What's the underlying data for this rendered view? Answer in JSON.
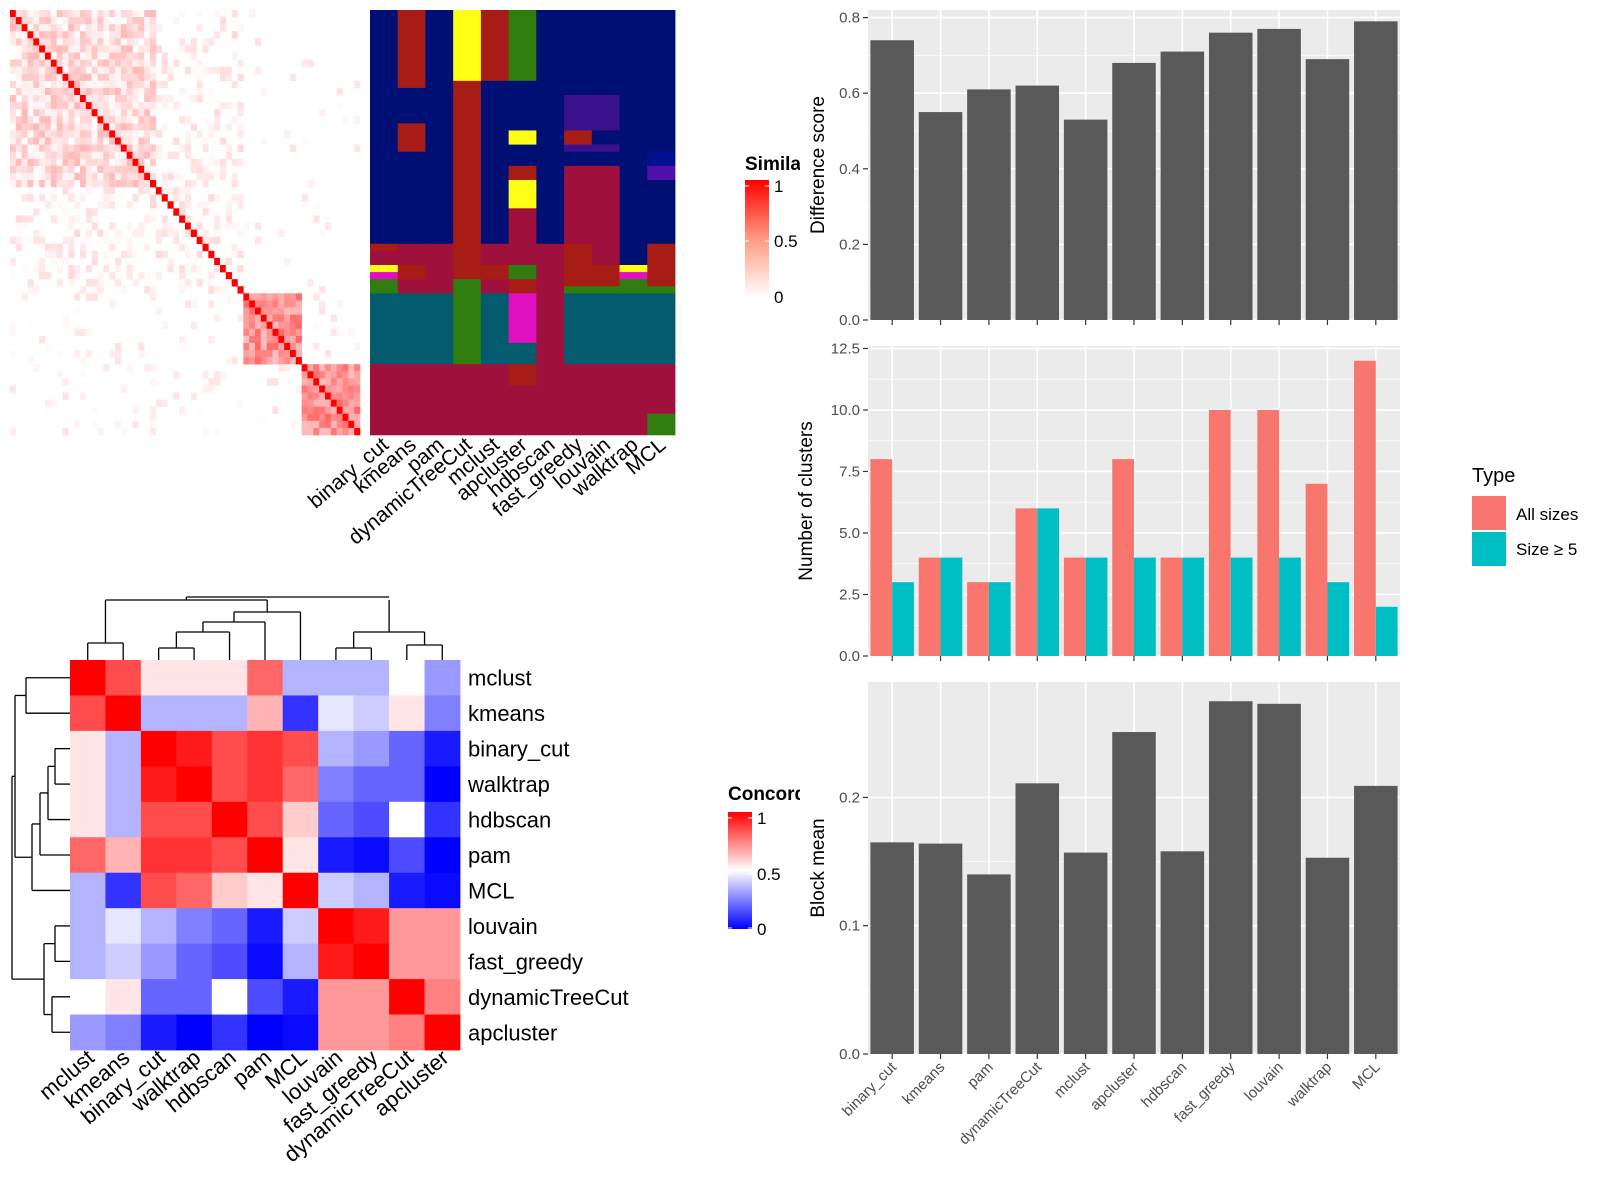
{
  "colors": {
    "panel_bg": "#ebebeb",
    "grid": "#ffffff",
    "bar_dark": "#595959",
    "all_sizes": "#f8766d",
    "size_ge5": "#00bfc4",
    "sim_high": "#ff0000",
    "conc_low": "#0000ff",
    "clusters": {
      "navy": "#000f73",
      "darkred": "#a81c16",
      "yellow": "#ffff16",
      "green": "#2e7d0e",
      "purple": "#3a118c",
      "crimson": "#a0103c",
      "teal": "#055b6e",
      "magenta": "#e010c0",
      "indigo": "#5010a8",
      "blue": "#001090"
    }
  },
  "cell_similarity": {
    "legend_title": "Simila",
    "legend_ticks": [
      "1",
      "0.5",
      "0"
    ],
    "n_cells": 60,
    "block_starts": [
      0,
      40,
      50
    ],
    "block_ends": [
      40,
      50,
      60
    ]
  },
  "cluster_assignment": {
    "methods": [
      "binary_cut",
      "kmeans",
      "pam",
      "dynamicTreeCut",
      "mclust",
      "apcluster",
      "hdbscan",
      "fast_greedy",
      "louvain",
      "walktrap",
      "MCL"
    ],
    "label_texts": [
      "binary_cut",
      "kmeans",
      "pam",
      "dynamicTreeCut",
      "mclust",
      "apcluster",
      "hdbscan",
      "fast_greedy",
      "louvain",
      "walktrap",
      "MCL"
    ]
  },
  "concordance": {
    "legend_title": "Concord",
    "legend_ticks": [
      "1",
      "0.5",
      "0"
    ],
    "row_order": [
      "mclust",
      "kmeans",
      "binary_cut",
      "walktrap",
      "hdbscan",
      "pam",
      "MCL",
      "louvain",
      "fast_greedy",
      "dynamicTreeCut",
      "apcluster"
    ],
    "row_labels": [
      "mclust",
      "kmeans",
      "binary_cut",
      "walktrap",
      "hdbscan",
      "pam",
      "MCL",
      "louvain",
      "fast_greedy",
      "dynamicTreeCut",
      "apcluster"
    ],
    "col_labels": [
      "mclust",
      "kmeans",
      "binary_cut",
      "walktrap",
      "hdbscan",
      "pam",
      "MCL",
      "louvain",
      "fast_greedy",
      "dynamicTreeCut",
      "apcluster"
    ],
    "matrix": [
      [
        1.0,
        0.85,
        0.55,
        0.55,
        0.55,
        0.8,
        0.35,
        0.35,
        0.35,
        0.5,
        0.3
      ],
      [
        0.85,
        1.0,
        0.35,
        0.35,
        0.35,
        0.65,
        0.1,
        0.45,
        0.4,
        0.55,
        0.25
      ],
      [
        0.55,
        0.35,
        1.0,
        0.95,
        0.85,
        0.9,
        0.85,
        0.35,
        0.3,
        0.2,
        0.05
      ],
      [
        0.55,
        0.35,
        0.95,
        1.0,
        0.85,
        0.9,
        0.8,
        0.25,
        0.2,
        0.2,
        -0.1
      ],
      [
        0.55,
        0.35,
        0.85,
        0.85,
        1.0,
        0.85,
        0.6,
        0.2,
        0.15,
        0.5,
        0.1
      ],
      [
        0.8,
        0.65,
        0.9,
        0.9,
        0.85,
        1.0,
        0.55,
        0.05,
        0.02,
        0.15,
        -0.2
      ],
      [
        0.35,
        0.1,
        0.85,
        0.8,
        0.6,
        0.55,
        1.0,
        0.4,
        0.35,
        0.05,
        0.02
      ],
      [
        0.35,
        0.45,
        0.35,
        0.25,
        0.2,
        0.05,
        0.4,
        1.0,
        0.95,
        0.7,
        0.7
      ],
      [
        0.35,
        0.4,
        0.3,
        0.2,
        0.15,
        0.02,
        0.35,
        0.95,
        1.0,
        0.7,
        0.7
      ],
      [
        0.5,
        0.55,
        0.2,
        0.2,
        0.5,
        0.15,
        0.05,
        0.7,
        0.7,
        1.0,
        0.75
      ],
      [
        0.3,
        0.25,
        0.05,
        -0.1,
        0.1,
        -0.2,
        0.02,
        0.7,
        0.7,
        0.75,
        1.0
      ]
    ]
  },
  "chart_data": [
    {
      "type": "bar",
      "categories": [
        "binary_cut",
        "kmeans",
        "pam",
        "dynamicTreeCut",
        "mclust",
        "apcluster",
        "hdbscan",
        "fast_greedy",
        "louvain",
        "walktrap",
        "MCL"
      ],
      "values": [
        0.74,
        0.55,
        0.61,
        0.62,
        0.53,
        0.68,
        0.71,
        0.76,
        0.77,
        0.69,
        0.79
      ],
      "ylabel": "Difference score",
      "ylim": [
        0,
        0.82
      ],
      "yticks": [
        0.0,
        0.2,
        0.4,
        0.6,
        0.8
      ],
      "ytick_labels": [
        "0.0",
        "0.2",
        "0.4",
        "0.6",
        "0.8"
      ]
    },
    {
      "type": "bar",
      "categories": [
        "binary_cut",
        "kmeans",
        "pam",
        "dynamicTreeCut",
        "mclust",
        "apcluster",
        "hdbscan",
        "fast_greedy",
        "louvain",
        "walktrap",
        "MCL"
      ],
      "series": [
        {
          "name": "All sizes",
          "values": [
            8,
            4,
            3,
            6,
            4,
            8,
            4,
            10,
            10,
            7,
            12
          ]
        },
        {
          "name": "Size ≥ 5",
          "values": [
            3,
            4,
            3,
            6,
            4,
            4,
            4,
            4,
            4,
            3,
            2
          ]
        }
      ],
      "ylabel": "Number of clusters",
      "ylim": [
        0,
        12.6
      ],
      "yticks": [
        0,
        2.5,
        5,
        7.5,
        10,
        12.5
      ],
      "ytick_labels": [
        "0.0",
        "2.5",
        "5.0",
        "7.5",
        "10.0",
        "12.5"
      ],
      "legend_title": "Type",
      "legend_position": "right"
    },
    {
      "type": "bar",
      "categories": [
        "binary_cut",
        "kmeans",
        "pam",
        "dynamicTreeCut",
        "mclust",
        "apcluster",
        "hdbscan",
        "fast_greedy",
        "louvain",
        "walktrap",
        "MCL"
      ],
      "values": [
        0.165,
        0.164,
        0.14,
        0.211,
        0.157,
        0.251,
        0.158,
        0.275,
        0.273,
        0.153,
        0.209
      ],
      "ylabel": "Block mean",
      "ylim": [
        0,
        0.29
      ],
      "yticks": [
        0.0,
        0.1,
        0.2
      ],
      "ytick_labels": [
        "0.0",
        "0.1",
        "0.2"
      ]
    }
  ]
}
